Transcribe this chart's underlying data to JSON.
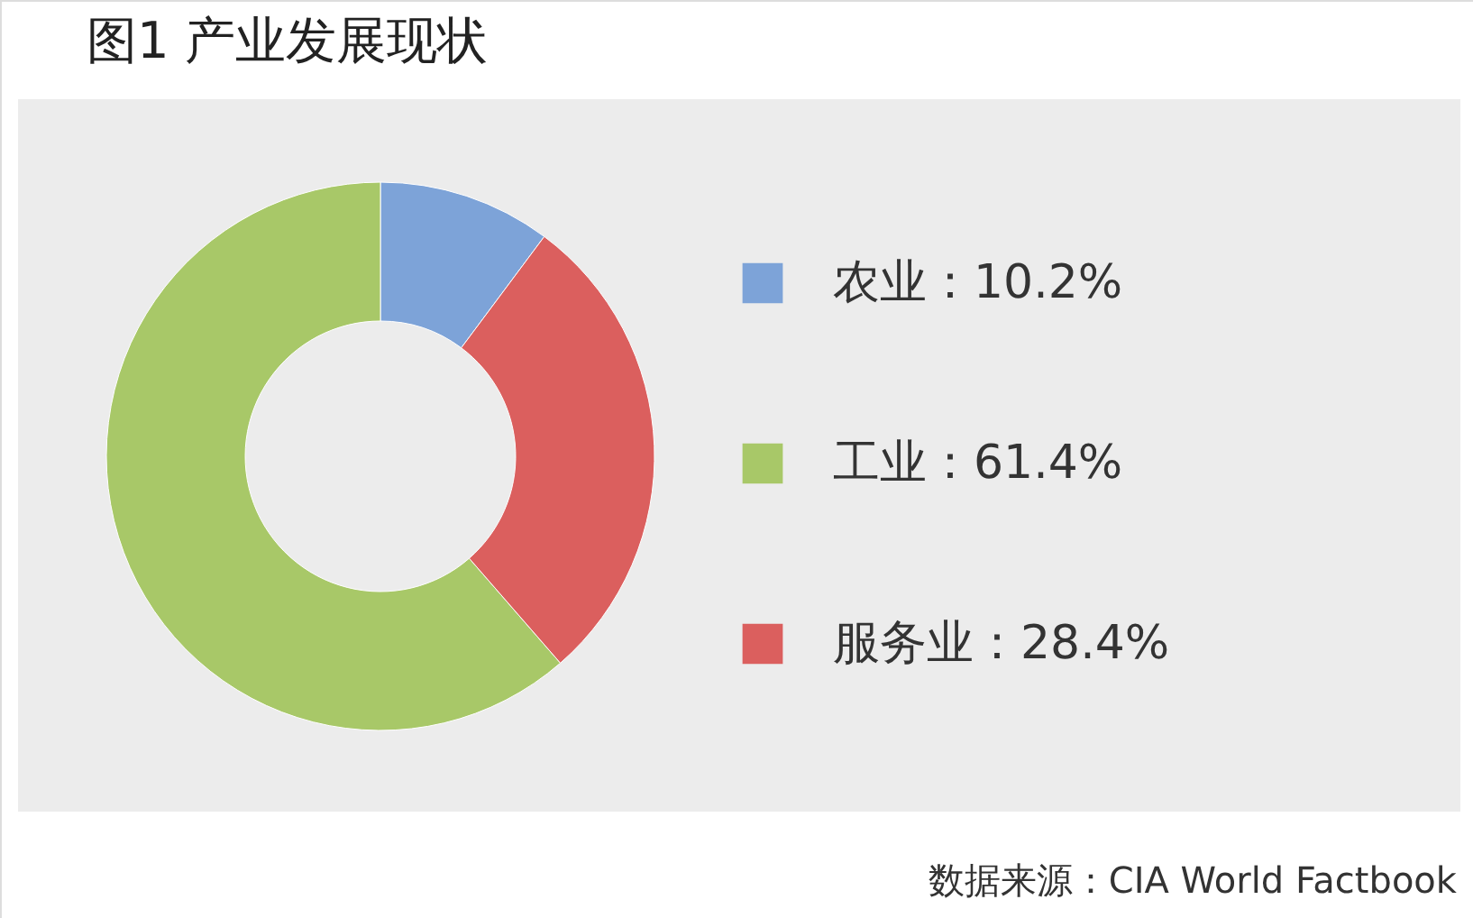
{
  "chart_data": {
    "type": "donut",
    "title": "图1 产业发展现状",
    "categories": [
      "农业",
      "工业",
      "服务业"
    ],
    "values": [
      10.2,
      61.4,
      28.4
    ],
    "colors": [
      "#7da3d8",
      "#a8c868",
      "#db5f5e"
    ],
    "value_labels": [
      "10.2%",
      "61.4%",
      "28.4%"
    ],
    "legend": "right",
    "annotations": [
      "数据来源：CIA World Factbook"
    ]
  }
}
